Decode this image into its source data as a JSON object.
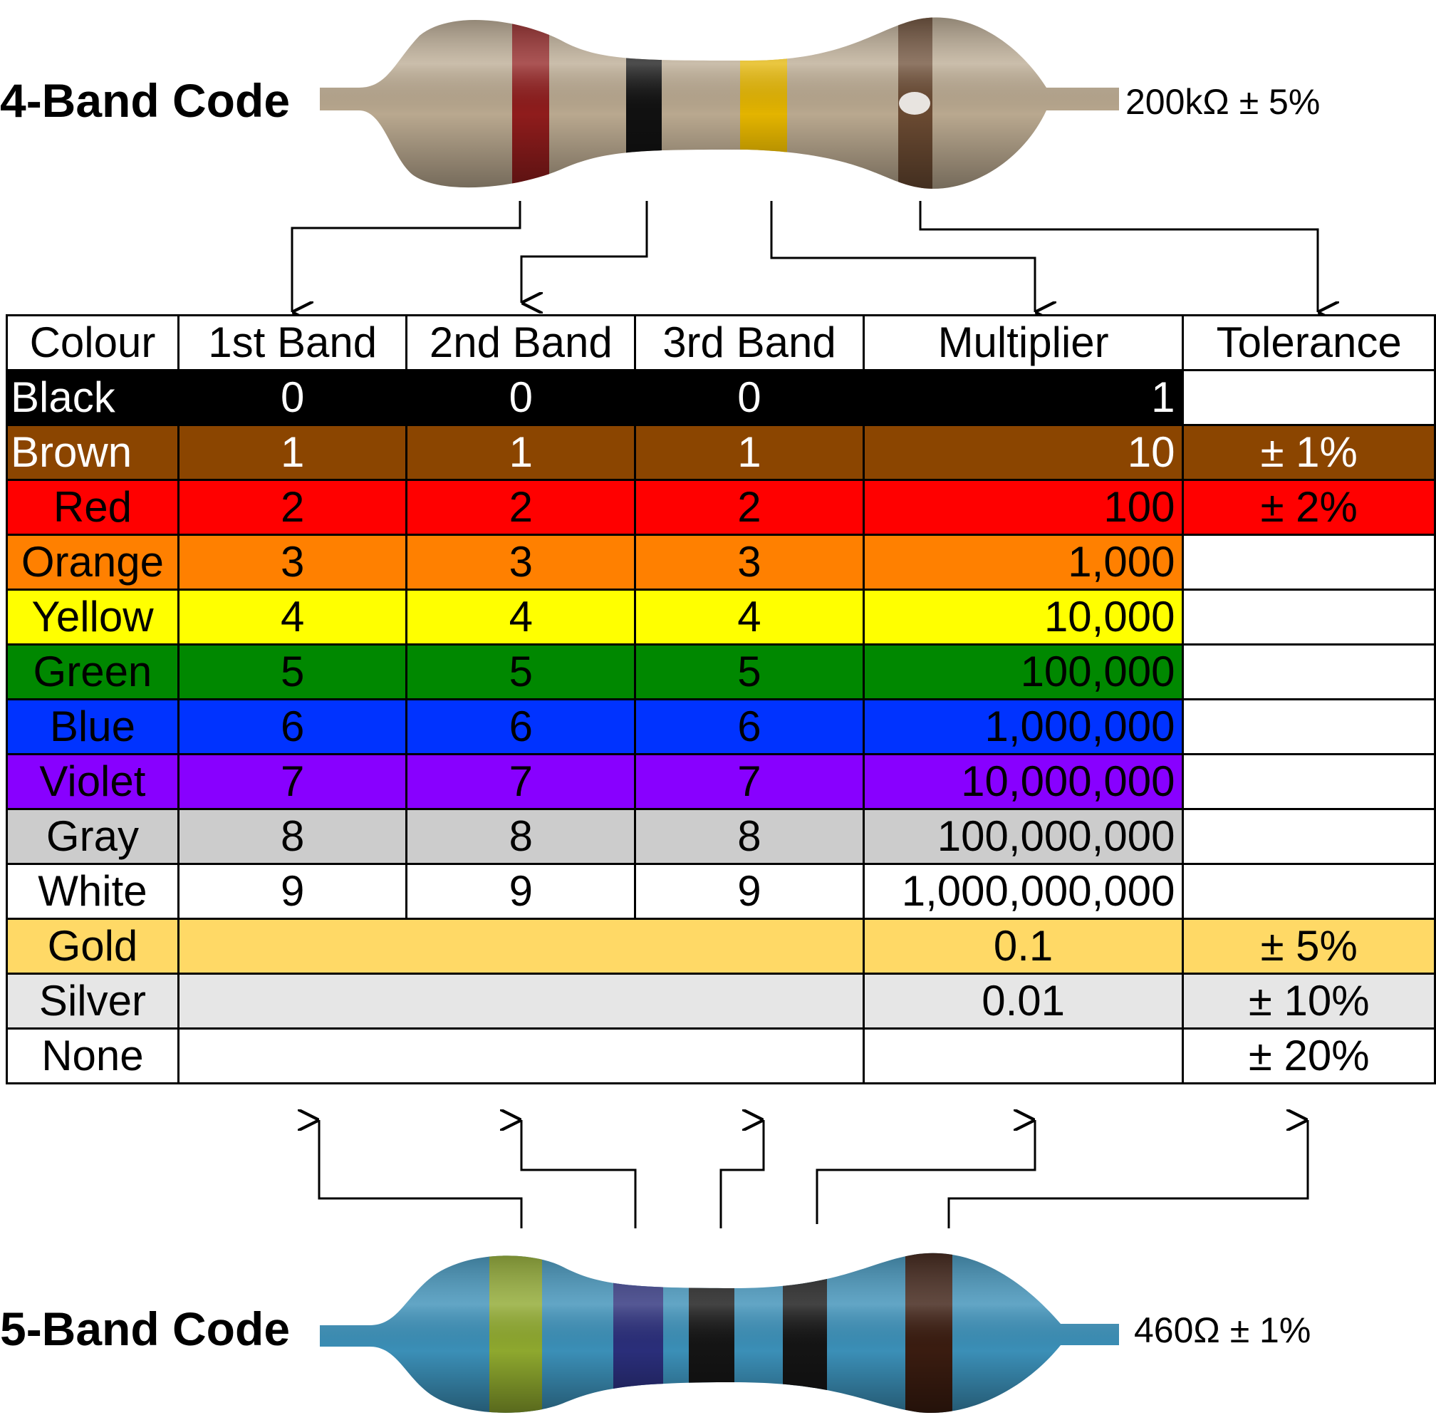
{
  "four_band": {
    "heading": "4-Band Code",
    "value": "200kΩ ± 5%",
    "bands": [
      {
        "name": "red",
        "color": "#8f1c1c"
      },
      {
        "name": "black",
        "color": "#111111"
      },
      {
        "name": "yellow",
        "color": "#e3b400"
      },
      {
        "name": "gold",
        "color": "#6a4a32"
      }
    ],
    "body_color": "#b9a88f"
  },
  "five_band": {
    "heading": "5-Band Code",
    "value": "460Ω ± 1%",
    "bands": [
      {
        "name": "yellow",
        "color": "#8ea82e"
      },
      {
        "name": "blue",
        "color": "#2a2e7a"
      },
      {
        "name": "black",
        "color": "#141414"
      },
      {
        "name": "black",
        "color": "#141414"
      },
      {
        "name": "brown",
        "color": "#3a1c10"
      }
    ],
    "body_color": "#3b8fb7"
  },
  "table": {
    "headers": [
      "Colour",
      "1st Band",
      "2nd Band",
      "3rd Band",
      "Multiplier",
      "Tolerance"
    ],
    "rows": [
      {
        "name": "Black",
        "bg": "#000000",
        "fg": "#ffffff",
        "b1": "0",
        "b2": "0",
        "b3": "0",
        "mult": "1",
        "tol": "",
        "tol_bg": "#ffffff"
      },
      {
        "name": "Brown",
        "bg": "#8b4500",
        "fg": "#ffffff",
        "b1": "1",
        "b2": "1",
        "b3": "1",
        "mult": "10",
        "tol": "± 1%",
        "tol_bg": "#8b4500"
      },
      {
        "name": "Red",
        "bg": "#ff0000",
        "fg": "#000000",
        "b1": "2",
        "b2": "2",
        "b3": "2",
        "mult": "100",
        "tol": "± 2%",
        "tol_bg": "#ff0000"
      },
      {
        "name": "Orange",
        "bg": "#ff8000",
        "fg": "#000000",
        "b1": "3",
        "b2": "3",
        "b3": "3",
        "mult": "1,000",
        "tol": "",
        "tol_bg": "#ffffff"
      },
      {
        "name": "Yellow",
        "bg": "#ffff00",
        "fg": "#000000",
        "b1": "4",
        "b2": "4",
        "b3": "4",
        "mult": "10,000",
        "tol": "",
        "tol_bg": "#ffffff"
      },
      {
        "name": "Green",
        "bg": "#008800",
        "fg": "#000000",
        "b1": "5",
        "b2": "5",
        "b3": "5",
        "mult": "100,000",
        "tol": "",
        "tol_bg": "#ffffff"
      },
      {
        "name": "Blue",
        "bg": "#0033ff",
        "fg": "#000000",
        "b1": "6",
        "b2": "6",
        "b3": "6",
        "mult": "1,000,000",
        "tol": "",
        "tol_bg": "#ffffff"
      },
      {
        "name": "Violet",
        "bg": "#8800ff",
        "fg": "#000000",
        "b1": "7",
        "b2": "7",
        "b3": "7",
        "mult": "10,000,000",
        "tol": "",
        "tol_bg": "#ffffff"
      },
      {
        "name": "Gray",
        "bg": "#cccccc",
        "fg": "#000000",
        "b1": "8",
        "b2": "8",
        "b3": "8",
        "mult": "100,000,000",
        "tol": "",
        "tol_bg": "#ffffff"
      },
      {
        "name": "White",
        "bg": "#ffffff",
        "fg": "#000000",
        "b1": "9",
        "b2": "9",
        "b3": "9",
        "mult": "1,000,000,000",
        "tol": "",
        "tol_bg": "#ffffff"
      },
      {
        "name": "Gold",
        "bg": "#ffd966",
        "fg": "#000000",
        "b1": "",
        "b2": "",
        "b3": "",
        "mult": "0.1",
        "tol": "± 5%",
        "tol_bg": "#ffd966"
      },
      {
        "name": "Silver",
        "bg": "#e6e6e6",
        "fg": "#000000",
        "b1": "",
        "b2": "",
        "b3": "",
        "mult": "0.01",
        "tol": "± 10%",
        "tol_bg": "#e6e6e6"
      },
      {
        "name": "None",
        "bg": "#ffffff",
        "fg": "#000000",
        "b1": "",
        "b2": "",
        "b3": "",
        "mult": "",
        "tol": "± 20%",
        "tol_bg": "#ffffff"
      }
    ]
  }
}
